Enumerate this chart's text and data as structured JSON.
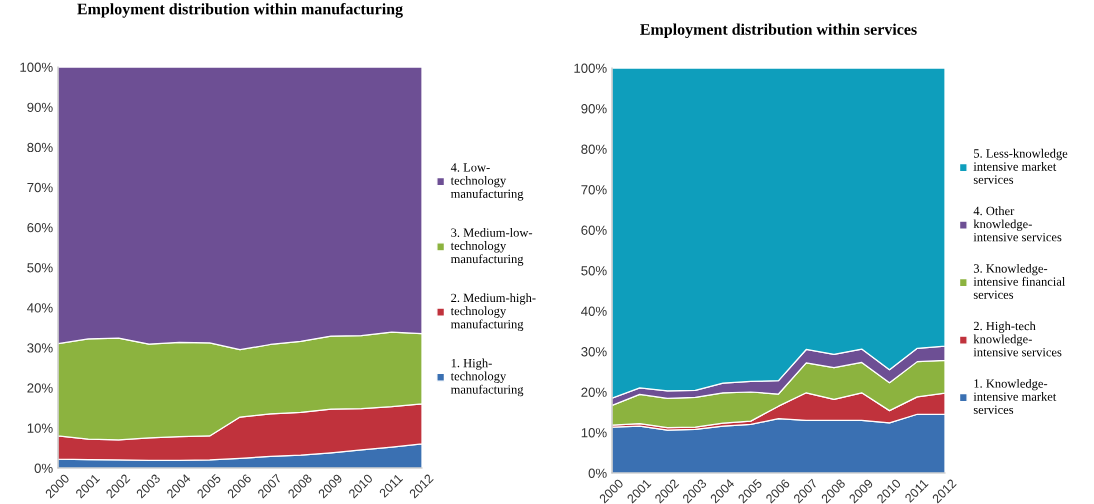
{
  "chart_data": [
    {
      "type": "area",
      "stacked": true,
      "title": "Employment distribution within manufacturing",
      "categories": [
        "2000",
        "2001",
        "2002",
        "2003",
        "2004",
        "2005",
        "2006",
        "2007",
        "2008",
        "2009",
        "2010",
        "2011",
        "2012"
      ],
      "ylim": [
        0,
        100
      ],
      "yticks": [
        {
          "value": 0,
          "label": "0%"
        },
        {
          "value": 10,
          "label": "10%"
        },
        {
          "value": 20,
          "label": "20%"
        },
        {
          "value": 30,
          "label": "30%"
        },
        {
          "value": 40,
          "label": "40%"
        },
        {
          "value": 50,
          "label": "50%"
        },
        {
          "value": 60,
          "label": "60%"
        },
        {
          "value": 70,
          "label": "70%"
        },
        {
          "value": 80,
          "label": "80%"
        },
        {
          "value": 90,
          "label": "90%"
        },
        {
          "value": 100,
          "label": "100%"
        }
      ],
      "grid": false,
      "legend": "right",
      "series": [
        {
          "name": "1. High-\ntechnology\nmanufacturing",
          "color": "#3a70b2",
          "values": [
            2.2,
            2.1,
            2.0,
            1.9,
            1.9,
            2.0,
            2.4,
            2.9,
            3.2,
            3.8,
            4.5,
            5.2,
            6.0
          ]
        },
        {
          "name": "2. Medium-high-\ntechnology\nmanufacturing",
          "color": "#c0323c",
          "values": [
            5.8,
            5.1,
            5.0,
            5.6,
            5.9,
            6.0,
            10.3,
            10.6,
            10.7,
            10.9,
            10.3,
            10.1,
            10.0
          ]
        },
        {
          "name": "3. Medium-low-\ntechnology\nmanufacturing",
          "color": "#8cb33f",
          "values": [
            23.0,
            25.0,
            25.4,
            23.4,
            23.5,
            23.2,
            16.8,
            17.3,
            17.7,
            18.2,
            18.2,
            18.6,
            17.5
          ]
        },
        {
          "name": "4. Low-\ntechnology\nmanufacturing",
          "color": "#6d4f94",
          "values": [
            69.0,
            67.8,
            67.6,
            69.1,
            68.7,
            68.8,
            70.5,
            69.2,
            68.4,
            67.1,
            67.0,
            66.1,
            66.5
          ]
        }
      ]
    },
    {
      "type": "area",
      "stacked": true,
      "title": "Employment distribution within services",
      "categories": [
        "2000",
        "2001",
        "2002",
        "2003",
        "2004",
        "2005",
        "2006",
        "2007",
        "2008",
        "2009",
        "2010",
        "2011",
        "2012"
      ],
      "ylim": [
        0,
        100
      ],
      "yticks": [
        {
          "value": 0,
          "label": "0%"
        },
        {
          "value": 10,
          "label": "10%"
        },
        {
          "value": 20,
          "label": "20%"
        },
        {
          "value": 30,
          "label": "30%"
        },
        {
          "value": 40,
          "label": "40%"
        },
        {
          "value": 50,
          "label": "50%"
        },
        {
          "value": 60,
          "label": "60%"
        },
        {
          "value": 70,
          "label": "70%"
        },
        {
          "value": 80,
          "label": "80%"
        },
        {
          "value": 90,
          "label": "90%"
        },
        {
          "value": 100,
          "label": "100%"
        }
      ],
      "grid": false,
      "legend": "right",
      "series": [
        {
          "name": "1. Knowledge-\nintensive market\nservices",
          "color": "#3a70b2",
          "values": [
            11.3,
            11.6,
            10.6,
            10.8,
            11.6,
            12.0,
            13.4,
            13.0,
            13.0,
            13.0,
            12.4,
            14.5,
            14.5
          ]
        },
        {
          "name": "2. High-tech\nknowledge-\nintensive services",
          "color": "#c0323c",
          "values": [
            0.5,
            0.6,
            0.6,
            0.5,
            0.7,
            0.8,
            3.1,
            6.8,
            5.2,
            6.8,
            3.0,
            4.3,
            5.2
          ]
        },
        {
          "name": "3. Knowledge-\nintensive financial\nservices",
          "color": "#8cb33f",
          "values": [
            4.9,
            7.2,
            7.2,
            7.4,
            7.5,
            7.2,
            3.0,
            7.4,
            7.8,
            7.5,
            6.9,
            8.7,
            8.1
          ]
        },
        {
          "name": "4. Other\nknowledge-\nintensive services",
          "color": "#6d4f94",
          "values": [
            1.8,
            1.6,
            1.9,
            1.7,
            2.4,
            2.6,
            3.3,
            3.3,
            3.3,
            3.3,
            3.2,
            3.3,
            3.5
          ]
        },
        {
          "name": "5. Less-knowledge\nintensive market\nservices",
          "color": "#0e9ebc",
          "values": [
            81.5,
            79.0,
            79.7,
            79.6,
            77.8,
            77.4,
            77.2,
            69.5,
            70.7,
            69.4,
            74.5,
            69.2,
            68.7
          ]
        }
      ]
    }
  ]
}
